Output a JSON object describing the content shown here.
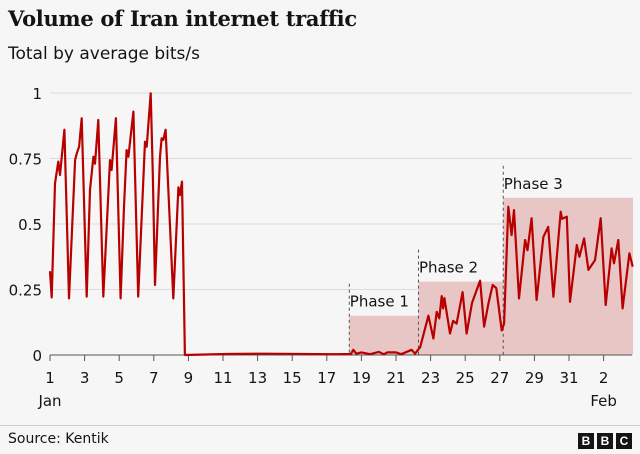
{
  "chart_data": {
    "type": "line",
    "title": "Volume of Iran internet traffic",
    "subtitle": "Total by average bits/s",
    "xlabel": "",
    "ylabel": "",
    "ylim": [
      0,
      1
    ],
    "xlim_days": [
      1,
      34.7
    ],
    "yticks": [
      {
        "v": 0,
        "label": "0"
      },
      {
        "v": 0.25,
        "label": "0.25"
      },
      {
        "v": 0.5,
        "label": "0.5"
      },
      {
        "v": 0.75,
        "label": "0.75"
      },
      {
        "v": 1,
        "label": "1"
      }
    ],
    "xticks": [
      {
        "day": 1,
        "label": "1",
        "month": "Jan"
      },
      {
        "day": 3,
        "label": "3"
      },
      {
        "day": 5,
        "label": "5"
      },
      {
        "day": 7,
        "label": "7"
      },
      {
        "day": 9,
        "label": "9"
      },
      {
        "day": 11,
        "label": "11"
      },
      {
        "day": 13,
        "label": "13"
      },
      {
        "day": 15,
        "label": "15"
      },
      {
        "day": 17,
        "label": "17"
      },
      {
        "day": 19,
        "label": "19"
      },
      {
        "day": 21,
        "label": "21"
      },
      {
        "day": 23,
        "label": "23"
      },
      {
        "day": 25,
        "label": "25"
      },
      {
        "day": 27,
        "label": "27"
      },
      {
        "day": 29,
        "label": "29"
      },
      {
        "day": 31,
        "label": "31"
      },
      {
        "day": 33,
        "label": "2",
        "month": "Feb"
      }
    ],
    "grid": true,
    "color": "#b80000",
    "phase_color": "#e9c6c6",
    "phases": [
      {
        "label": "Phase 1",
        "start": 18.3,
        "end": 22.3,
        "level": 0.15
      },
      {
        "label": "Phase 2",
        "start": 22.3,
        "end": 27.2,
        "level": 0.28
      },
      {
        "label": "Phase 3",
        "start": 27.2,
        "end": 34.7,
        "level": 0.6
      }
    ],
    "series": [
      {
        "points": [
          [
            1.0,
            0.32
          ],
          [
            1.1,
            0.22
          ],
          [
            1.29,
            0.655
          ],
          [
            1.48,
            0.738
          ],
          [
            1.58,
            0.687
          ],
          [
            1.83,
            0.86
          ],
          [
            2.1,
            0.216
          ],
          [
            2.45,
            0.744
          ],
          [
            2.55,
            0.77
          ],
          [
            2.68,
            0.795
          ],
          [
            2.83,
            0.904
          ],
          [
            3.12,
            0.223
          ],
          [
            3.31,
            0.63
          ],
          [
            3.51,
            0.757
          ],
          [
            3.6,
            0.73
          ],
          [
            3.79,
            0.897
          ],
          [
            4.08,
            0.223
          ],
          [
            4.47,
            0.744
          ],
          [
            4.56,
            0.706
          ],
          [
            4.81,
            0.904
          ],
          [
            5.08,
            0.216
          ],
          [
            5.28,
            0.566
          ],
          [
            5.43,
            0.782
          ],
          [
            5.53,
            0.757
          ],
          [
            5.82,
            0.929
          ],
          [
            6.1,
            0.223
          ],
          [
            6.49,
            0.814
          ],
          [
            6.59,
            0.795
          ],
          [
            6.82,
            0.999
          ],
          [
            6.94,
            0.693
          ],
          [
            7.07,
            0.267
          ],
          [
            7.36,
            0.757
          ],
          [
            7.45,
            0.827
          ],
          [
            7.55,
            0.821
          ],
          [
            7.68,
            0.86
          ],
          [
            8.13,
            0.216
          ],
          [
            8.42,
            0.64
          ],
          [
            8.51,
            0.61
          ],
          [
            8.63,
            0.662
          ],
          [
            8.8,
            0.0
          ],
          [
            11.2,
            0.004
          ],
          [
            13.4,
            0.005
          ],
          [
            17.5,
            0.003
          ],
          [
            18.4,
            0.004
          ],
          [
            18.53,
            0.02
          ],
          [
            18.7,
            0.005
          ],
          [
            19.0,
            0.01
          ],
          [
            19.5,
            0.003
          ],
          [
            20.0,
            0.012
          ],
          [
            20.3,
            0.003
          ],
          [
            20.5,
            0.01
          ],
          [
            21.0,
            0.01
          ],
          [
            21.3,
            0.003
          ],
          [
            21.9,
            0.02
          ],
          [
            22.1,
            0.005
          ],
          [
            22.4,
            0.03
          ],
          [
            22.87,
            0.15
          ],
          [
            23.16,
            0.063
          ],
          [
            23.35,
            0.165
          ],
          [
            23.5,
            0.14
          ],
          [
            23.64,
            0.225
          ],
          [
            23.72,
            0.178
          ],
          [
            23.8,
            0.217
          ],
          [
            24.12,
            0.082
          ],
          [
            24.3,
            0.13
          ],
          [
            24.5,
            0.12
          ],
          [
            24.85,
            0.24
          ],
          [
            25.08,
            0.082
          ],
          [
            25.4,
            0.2
          ],
          [
            25.86,
            0.284
          ],
          [
            26.09,
            0.108
          ],
          [
            26.35,
            0.2
          ],
          [
            26.59,
            0.267
          ],
          [
            26.8,
            0.255
          ],
          [
            27.11,
            0.094
          ],
          [
            27.25,
            0.12
          ],
          [
            27.49,
            0.566
          ],
          [
            27.68,
            0.458
          ],
          [
            27.82,
            0.553
          ],
          [
            28.11,
            0.216
          ],
          [
            28.46,
            0.439
          ],
          [
            28.6,
            0.4
          ],
          [
            28.84,
            0.522
          ],
          [
            29.13,
            0.21
          ],
          [
            29.52,
            0.451
          ],
          [
            29.8,
            0.489
          ],
          [
            30.1,
            0.222
          ],
          [
            30.52,
            0.547
          ],
          [
            30.6,
            0.52
          ],
          [
            30.87,
            0.528
          ],
          [
            31.06,
            0.203
          ],
          [
            31.45,
            0.42
          ],
          [
            31.6,
            0.375
          ],
          [
            31.87,
            0.445
          ],
          [
            32.12,
            0.325
          ],
          [
            32.5,
            0.362
          ],
          [
            32.83,
            0.522
          ],
          [
            33.12,
            0.191
          ],
          [
            33.46,
            0.407
          ],
          [
            33.6,
            0.35
          ],
          [
            33.85,
            0.439
          ],
          [
            34.1,
            0.178
          ],
          [
            34.49,
            0.388
          ],
          [
            34.68,
            0.337
          ]
        ]
      }
    ]
  },
  "footer": {
    "source": "Source: Kentik",
    "logo": [
      "B",
      "B",
      "C"
    ]
  }
}
